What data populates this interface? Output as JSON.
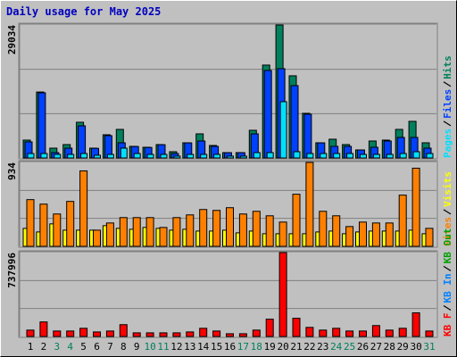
{
  "title": "Daily usage for May 2025",
  "chart_data": [
    {
      "type": "bar",
      "ylim": [
        0,
        29034
      ],
      "yticks": [
        29034
      ],
      "series": [
        {
          "name": "Hits",
          "color": "#00805c",
          "values": [
            3900,
            14400,
            2145,
            2925,
            7800,
            2145,
            5070,
            6240,
            2535,
            2340,
            2925,
            1365,
            3315,
            5265,
            2730,
            1170,
            1170,
            6045,
            20280,
            29034,
            17940,
            9750,
            3315,
            4095,
            2925,
            1755,
            3705,
            3900,
            6240,
            7995,
            3315
          ]
        },
        {
          "name": "Files",
          "color": "#0040ff",
          "values": [
            3510,
            14235,
            1170,
            2145,
            7020,
            2100,
            4875,
            3315,
            2500,
            2300,
            2900,
            975,
            3300,
            3705,
            2535,
            1150,
            1150,
            5265,
            19110,
            19500,
            15795,
            9555,
            3300,
            2535,
            2535,
            1750,
            2340,
            3705,
            4485,
            4485,
            2145
          ]
        },
        {
          "name": "Pages",
          "color": "#00e0ff",
          "values": [
            975,
            975,
            780,
            780,
            975,
            600,
            780,
            2145,
            975,
            780,
            780,
            400,
            780,
            780,
            780,
            400,
            400,
            1170,
            1170,
            12285,
            1365,
            975,
            975,
            975,
            975,
            780,
            780,
            780,
            975,
            1365,
            975
          ]
        }
      ]
    },
    {
      "type": "bar",
      "ylim": [
        0,
        934
      ],
      "yticks": [
        934
      ],
      "series": [
        {
          "name": "Visits",
          "color": "#ffff00",
          "values": [
            200,
            160,
            250,
            180,
            180,
            180,
            230,
            200,
            190,
            210,
            200,
            180,
            190,
            170,
            170,
            180,
            150,
            170,
            140,
            140,
            140,
            140,
            160,
            170,
            140,
            160,
            170,
            170,
            170,
            180,
            140
          ]
        },
        {
          "name": "Sites",
          "color": "#ff8000",
          "values": [
            520,
            470,
            360,
            500,
            840,
            180,
            260,
            320,
            320,
            320,
            210,
            320,
            350,
            410,
            400,
            430,
            360,
            390,
            340,
            270,
            580,
            934,
            390,
            340,
            220,
            270,
            260,
            260,
            570,
            870,
            200
          ]
        }
      ]
    },
    {
      "type": "bar",
      "ylim": [
        0,
        737996
      ],
      "yticks": [
        737996
      ],
      "categories": [
        "1",
        "2",
        "3",
        "4",
        "5",
        "6",
        "7",
        "8",
        "9",
        "10",
        "11",
        "12",
        "13",
        "14",
        "15",
        "16",
        "17",
        "18",
        "19",
        "20",
        "21",
        "22",
        "23",
        "24",
        "25",
        "26",
        "27",
        "28",
        "29",
        "30",
        "31"
      ],
      "label_colors": [
        "#000",
        "#000",
        "#00805c",
        "#00805c",
        "#000",
        "#000",
        "#000",
        "#000",
        "#000",
        "#00805c",
        "#00805c",
        "#000",
        "#000",
        "#000",
        "#000",
        "#000",
        "#00805c",
        "#00805c",
        "#000",
        "#000",
        "#000",
        "#000",
        "#000",
        "#00805c",
        "#00805c",
        "#000",
        "#000",
        "#000",
        "#000",
        "#000",
        "#00805c"
      ],
      "series": [
        {
          "name": "KB Out",
          "color": "#00a000"
        },
        {
          "name": "KB In",
          "color": "#0080ff"
        },
        {
          "name": "KB F",
          "color": "#ff0000",
          "values": [
            56000,
            128000,
            48000,
            48000,
            72000,
            40000,
            48000,
            104000,
            32000,
            32000,
            32000,
            32000,
            40000,
            72000,
            48000,
            24000,
            24000,
            56000,
            152000,
            737996,
            160000,
            80000,
            56000,
            72000,
            48000,
            48000,
            96000,
            56000,
            72000,
            208000,
            48000
          ]
        }
      ]
    }
  ]
}
